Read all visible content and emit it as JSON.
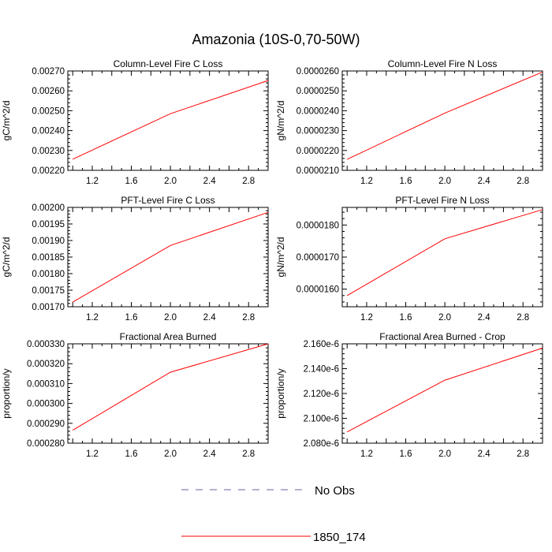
{
  "figure_title": "Amazonia (10S-0,70-50W)",
  "colors": {
    "series": "#ff0000",
    "obs": "#6666aa",
    "axis": "#000000"
  },
  "legend": {
    "entries": [
      {
        "label": "No Obs",
        "style": "dashed",
        "color": "#6666aa"
      },
      {
        "label": "1850_174",
        "style": "solid",
        "color": "#ff0000"
      }
    ]
  },
  "chart_data": [
    {
      "type": "line",
      "title": "Column-Level Fire C Loss",
      "xlabel": "",
      "ylabel": "gC/m^2/d",
      "xlim": [
        0.95,
        3.0
      ],
      "ylim": [
        0.0022,
        0.0027
      ],
      "xticks": [
        1.2,
        1.6,
        2.0,
        2.4,
        2.8
      ],
      "xtick_labels": [
        "1.2",
        "1.6",
        "2.0",
        "2.4",
        "2.8"
      ],
      "yticks": [
        0.0022,
        0.0023,
        0.0024,
        0.0025,
        0.0026,
        0.0027
      ],
      "ytick_labels": [
        "0.00220",
        "0.00230",
        "0.00240",
        "0.00250",
        "0.00260",
        "0.00270"
      ],
      "series": [
        {
          "name": "1850_174",
          "x": [
            1,
            2,
            3
          ],
          "values": [
            0.002256,
            0.002485,
            0.002652
          ]
        }
      ]
    },
    {
      "type": "line",
      "title": "Column-Level Fire N Loss",
      "xlabel": "",
      "ylabel": "gN/m^2/d",
      "xlim": [
        0.95,
        3.0
      ],
      "ylim": [
        2.1e-05,
        2.6e-05
      ],
      "xticks": [
        1.2,
        1.6,
        2.0,
        2.4,
        2.8
      ],
      "xtick_labels": [
        "1.2",
        "1.6",
        "2.0",
        "2.4",
        "2.8"
      ],
      "yticks": [
        2.1e-05,
        2.2e-05,
        2.3e-05,
        2.4e-05,
        2.5e-05,
        2.6e-05
      ],
      "ytick_labels": [
        "0.0000210",
        "0.0000220",
        "0.0000230",
        "0.0000240",
        "0.0000250",
        "0.0000260"
      ],
      "series": [
        {
          "name": "1850_174",
          "x": [
            1,
            2,
            3
          ],
          "values": [
            2.155e-05,
            2.388e-05,
            2.595e-05
          ]
        }
      ]
    },
    {
      "type": "line",
      "title": "PFT-Level Fire C Loss",
      "xlabel": "",
      "ylabel": "gC/m^2/d",
      "xlim": [
        0.95,
        3.0
      ],
      "ylim": [
        0.0017,
        0.002
      ],
      "xticks": [
        1.2,
        1.6,
        2.0,
        2.4,
        2.8
      ],
      "xtick_labels": [
        "1.2",
        "1.6",
        "2.0",
        "2.4",
        "2.8"
      ],
      "yticks": [
        0.0017,
        0.00175,
        0.0018,
        0.00185,
        0.0019,
        0.00195,
        0.002
      ],
      "ytick_labels": [
        "0.00170",
        "0.00175",
        "0.00180",
        "0.00185",
        "0.00190",
        "0.00195",
        "0.00200"
      ],
      "series": [
        {
          "name": "1850_174",
          "x": [
            1,
            2,
            3
          ],
          "values": [
            0.001714,
            0.001885,
            0.001985
          ]
        }
      ]
    },
    {
      "type": "line",
      "title": "PFT-Level Fire N Loss",
      "xlabel": "",
      "ylabel": "gN/m^2/d",
      "xlim": [
        0.95,
        3.0
      ],
      "ylim": [
        1.545e-05,
        1.855e-05
      ],
      "xticks": [
        1.2,
        1.6,
        2.0,
        2.4,
        2.8
      ],
      "xtick_labels": [
        "1.2",
        "1.6",
        "2.0",
        "2.4",
        "2.8"
      ],
      "yticks": [
        1.6e-05,
        1.7e-05,
        1.8e-05
      ],
      "ytick_labels": [
        "0.0000160",
        "0.0000170",
        "0.0000180"
      ],
      "series": [
        {
          "name": "1850_174",
          "x": [
            1,
            2,
            3
          ],
          "values": [
            1.58e-05,
            1.757e-05,
            1.848e-05
          ]
        }
      ]
    },
    {
      "type": "line",
      "title": "Fractional Area Burned",
      "xlabel": "",
      "ylabel": "proportion/y",
      "xlim": [
        0.95,
        3.0
      ],
      "ylim": [
        0.00028,
        0.00033
      ],
      "xticks": [
        1.2,
        1.6,
        2.0,
        2.4,
        2.8
      ],
      "xtick_labels": [
        "1.2",
        "1.6",
        "2.0",
        "2.4",
        "2.8"
      ],
      "yticks": [
        0.00028,
        0.00029,
        0.0003,
        0.00031,
        0.00032,
        0.00033
      ],
      "ytick_labels": [
        "0.000280",
        "0.000290",
        "0.000300",
        "0.000310",
        "0.000320",
        "0.000330"
      ],
      "series": [
        {
          "name": "1850_174",
          "x": [
            1,
            2,
            3
          ],
          "values": [
            0.0002865,
            0.0003157,
            0.00033
          ]
        }
      ]
    },
    {
      "type": "line",
      "title": "Fractional Area Burned - Crop",
      "xlabel": "",
      "ylabel": "proportion/y",
      "xlim": [
        0.95,
        3.0
      ],
      "ylim": [
        2.08e-06,
        2.16e-06
      ],
      "xticks": [
        1.2,
        1.6,
        2.0,
        2.4,
        2.8
      ],
      "xtick_labels": [
        "1.2",
        "1.6",
        "2.0",
        "2.4",
        "2.8"
      ],
      "yticks": [
        2.08e-06,
        2.1e-06,
        2.12e-06,
        2.14e-06,
        2.16e-06
      ],
      "ytick_labels": [
        "2.080e-6",
        "2.100e-6",
        "2.120e-6",
        "2.140e-6",
        "2.160e-6"
      ],
      "series": [
        {
          "name": "1850_174",
          "x": [
            1,
            2,
            3
          ],
          "values": [
            2.0891e-06,
            2.1307e-06,
            2.1566e-06
          ]
        }
      ]
    }
  ]
}
